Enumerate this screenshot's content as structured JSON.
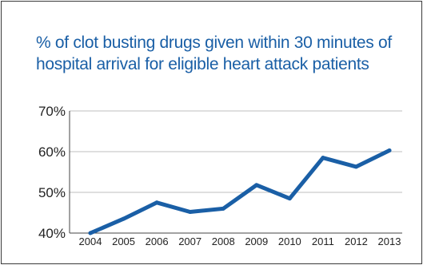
{
  "title_lines": [
    "% of clot busting drugs given within 30 minutes of",
    "hospital arrival for eligible heart attack patients"
  ],
  "chart_data": {
    "type": "line",
    "title": "% of clot busting drugs given within 30 minutes of hospital arrival for eligible heart attack patients",
    "xlabel": "",
    "ylabel": "",
    "x": [
      "2004",
      "2005",
      "2006",
      "2007",
      "2008",
      "2009",
      "2010",
      "2011",
      "2012",
      "2013"
    ],
    "series": [
      {
        "values": [
          40,
          43.5,
          47.5,
          45.2,
          46,
          51.8,
          48.5,
          58.5,
          56.3,
          60.3
        ]
      }
    ],
    "yticks": [
      "40%",
      "50%",
      "60%",
      "70%"
    ],
    "ytick_values": [
      40,
      50,
      60,
      70
    ],
    "ylim": [
      40,
      70
    ],
    "grid": true,
    "line_color": "#1a5fa6"
  }
}
